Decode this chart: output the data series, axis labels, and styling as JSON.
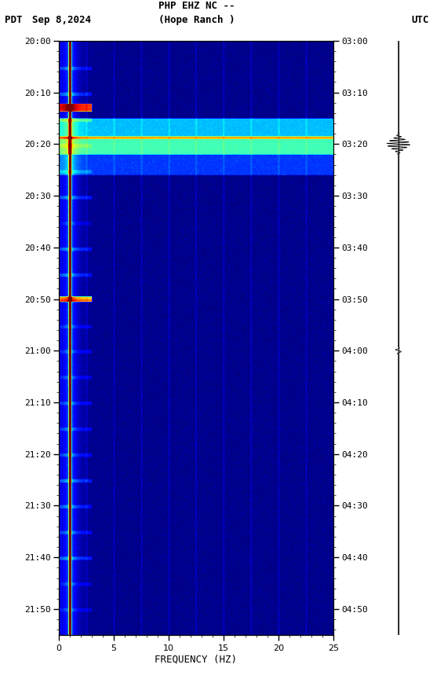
{
  "title_line1": "PHP EHZ NC --",
  "title_line2": "(Hope Ranch )",
  "label_left": "PDT",
  "label_date": "Sep 8,2024",
  "label_right": "UTC",
  "xlabel": "FREQUENCY (HZ)",
  "freq_min": 0,
  "freq_max": 25,
  "pdt_labels": [
    "20:00",
    "20:10",
    "20:20",
    "20:30",
    "20:40",
    "20:50",
    "21:00",
    "21:10",
    "21:20",
    "21:30",
    "21:40",
    "21:50"
  ],
  "utc_labels": [
    "03:00",
    "03:10",
    "03:20",
    "03:30",
    "03:40",
    "03:50",
    "04:00",
    "04:10",
    "04:20",
    "04:30",
    "04:40",
    "04:50"
  ],
  "fig_width": 5.52,
  "fig_height": 8.64,
  "dpi": 100,
  "cmap": "jet",
  "vmin": 0.0,
  "vmax": 6.0,
  "time_total_min": 115
}
